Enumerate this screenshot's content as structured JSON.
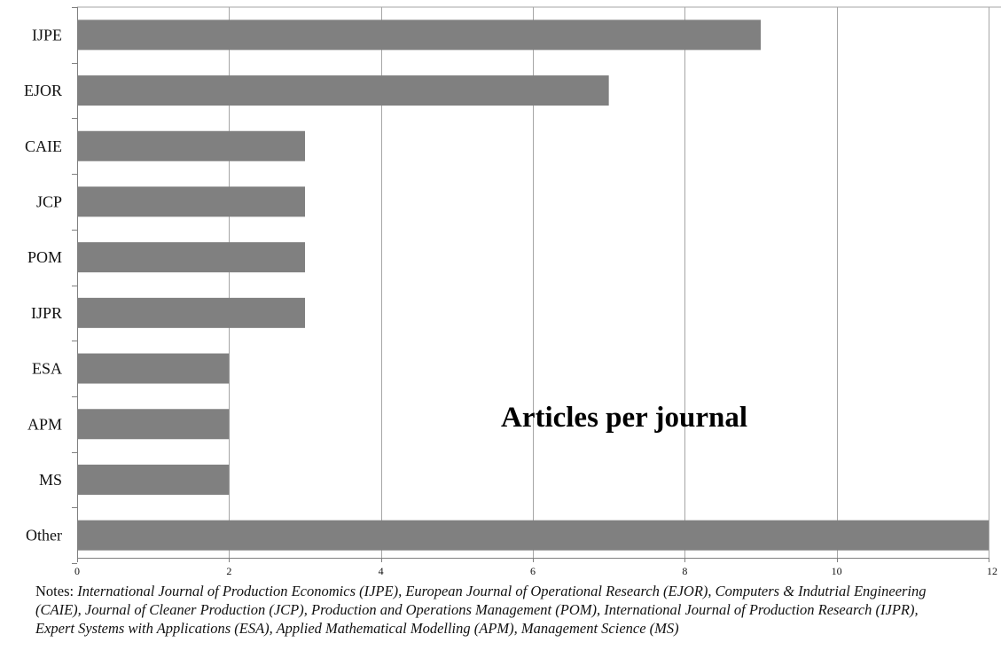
{
  "chart_data": {
    "type": "bar",
    "orientation": "horizontal",
    "title": "Articles per journal",
    "categories": [
      "IJPE",
      "EJOR",
      "CAIE",
      "JCP",
      "POM",
      "IJPR",
      "ESA",
      "APM",
      "MS",
      "Other"
    ],
    "values": [
      9,
      7,
      3,
      3,
      3,
      3,
      2,
      2,
      2,
      12
    ],
    "xlim": [
      0,
      12
    ],
    "x_ticks": [
      "0",
      "2",
      "4",
      "6",
      "8",
      "10",
      "12"
    ],
    "grid": "vertical major gridlines",
    "bar_color": "#808080",
    "gridline_color": "#a6a6a6",
    "axis_color": "#808080"
  },
  "notes": {
    "prefix": "Notes: ",
    "line1": "International Journal of Production Economics (IJPE), European Journal of Operational Research (EJOR), Computers & Indutrial Engineering",
    "line2": "(CAIE), Journal of Cleaner Production (JCP), Production and Operations Management (POM), International Journal of Production Research (IJPR),",
    "line3": "Expert Systems with Applications (ESA), Applied Mathematical Modelling (APM), Management Science (MS)"
  }
}
